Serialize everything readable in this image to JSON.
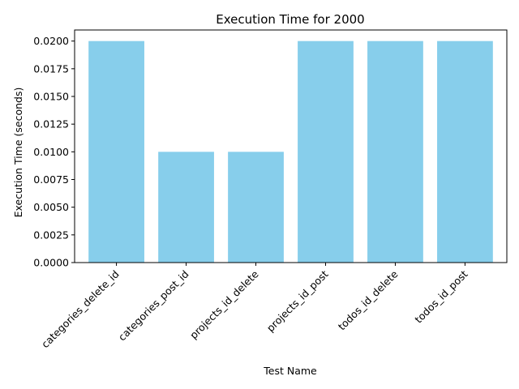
{
  "chart_data": {
    "type": "bar",
    "title": "Execution Time for 2000",
    "xlabel": "Test Name",
    "ylabel": "Execution Time (seconds)",
    "categories": [
      "categories_delete_id",
      "categories_post_id",
      "projects_id_delete",
      "projects_id_post",
      "todos_id_delete",
      "todos_id_post"
    ],
    "values": [
      0.02,
      0.01,
      0.01,
      0.02,
      0.02,
      0.02
    ],
    "ylim": [
      0,
      0.021
    ],
    "yticks": [
      "0.0000",
      "0.0025",
      "0.0050",
      "0.0075",
      "0.0100",
      "0.0125",
      "0.0150",
      "0.0175",
      "0.0200"
    ],
    "bar_color": "#87CEEB",
    "grid": false,
    "legend": "none"
  }
}
